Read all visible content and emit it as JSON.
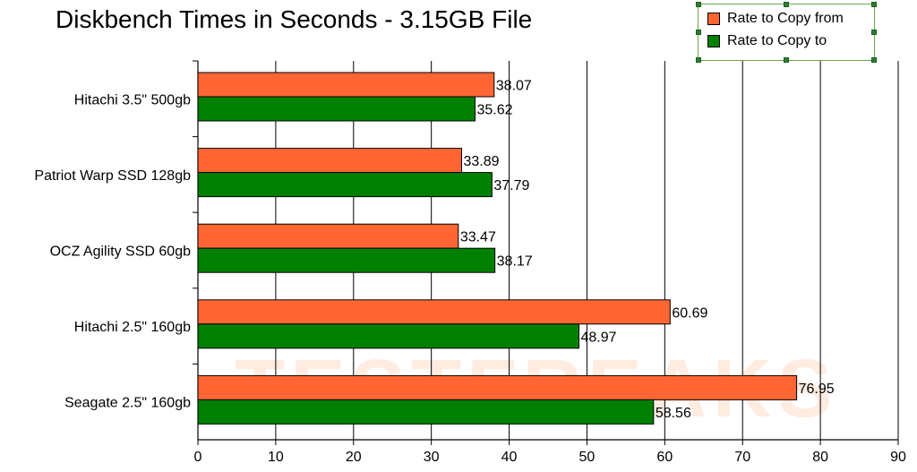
{
  "chart_data": {
    "type": "bar",
    "orientation": "horizontal",
    "title": "Diskbench Times in Seconds - 3.15GB File",
    "categories": [
      "Hitachi 3.5\" 500gb",
      "Patriot Warp SSD 128gb",
      "OCZ Agility SSD 60gb",
      "Hitachi 2.5\" 160gb",
      "Seagate 2.5\" 160gb"
    ],
    "series": [
      {
        "name": "Rate to Copy from",
        "color": "#ff6633",
        "values": [
          38.07,
          33.89,
          33.47,
          60.69,
          76.95
        ],
        "labels": [
          "38.07",
          "33.89",
          "33.47",
          "60.69",
          "76.95"
        ]
      },
      {
        "name": "Rate to Copy to",
        "color": "#008000",
        "values": [
          35.62,
          37.79,
          38.17,
          48.97,
          58.56
        ],
        "labels": [
          "35.62",
          "37.79",
          "38.17",
          "48.97",
          "58.56"
        ]
      }
    ],
    "xlim": [
      0,
      90
    ],
    "xticks": [
      "0",
      "10",
      "20",
      "30",
      "40",
      "50",
      "60",
      "70",
      "80",
      "90"
    ],
    "xlabel": "",
    "ylabel": "",
    "grid": true,
    "legend_position": "top-right"
  },
  "watermark": "TESTFREAKS"
}
